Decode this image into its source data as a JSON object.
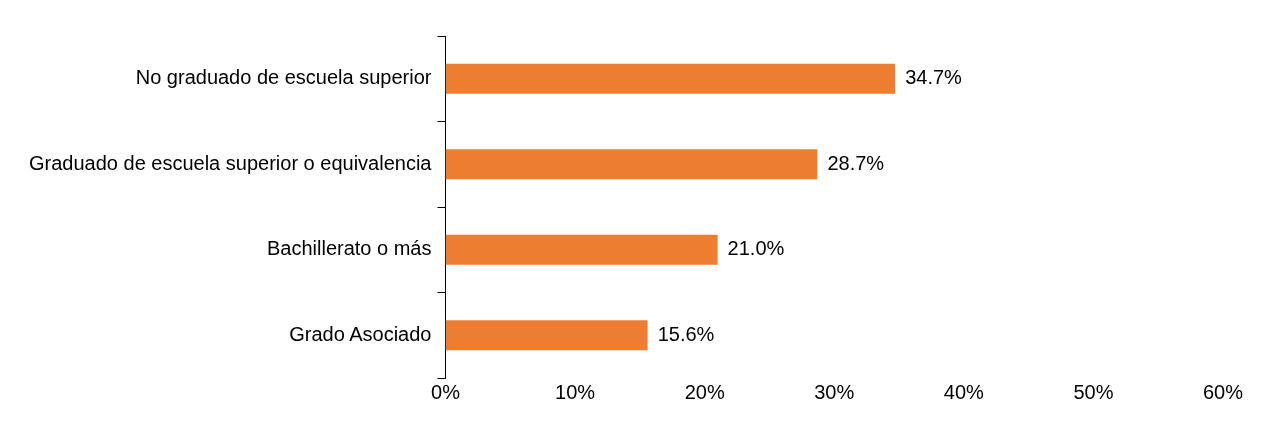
{
  "chart_data": {
    "type": "bar",
    "orientation": "horizontal",
    "categories": [
      "No graduado de escuela superior",
      "Graduado de escuela superior o equivalencia",
      "Bachillerato o más",
      "Grado Asociado"
    ],
    "values": [
      34.7,
      28.7,
      21.0,
      15.6
    ],
    "value_labels": [
      "34.7%",
      "28.7%",
      "21.0%",
      "15.6%"
    ],
    "color": "#ed7d31",
    "xlim": [
      0,
      60
    ],
    "xticks": [
      {
        "value": 0,
        "label": "0%"
      },
      {
        "value": 10,
        "label": "10%"
      },
      {
        "value": 20,
        "label": "20%"
      },
      {
        "value": 30,
        "label": "30%"
      },
      {
        "value": 40,
        "label": "40%"
      },
      {
        "value": 50,
        "label": "50%"
      },
      {
        "value": 60,
        "label": "60%"
      }
    ],
    "grid": false,
    "legend": false
  }
}
